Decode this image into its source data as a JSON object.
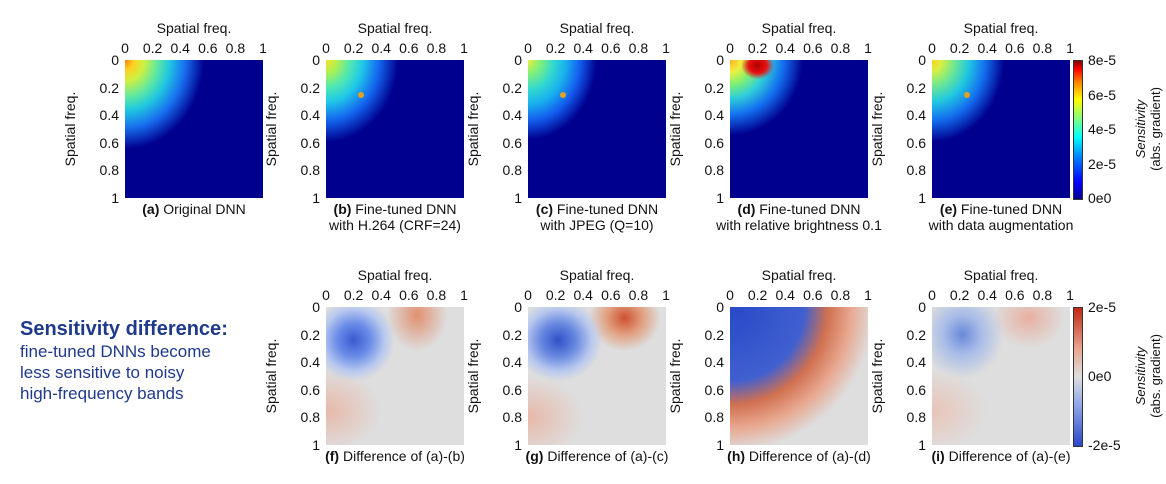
{
  "chart_data": [
    {
      "type": "heatmap",
      "id": "a",
      "xlabel": "Spatial freq.",
      "ylabel": "Spatial freq.",
      "xticks": [
        "0",
        "0.2",
        "0.4",
        "0.6",
        "0.8",
        "1"
      ],
      "yticks": [
        "0",
        "0.2",
        "0.4",
        "0.6",
        "0.8",
        "1"
      ],
      "caption_tag": "(a)",
      "caption": "Original DNN",
      "caption2": "",
      "metric": "sensitivity"
    },
    {
      "type": "heatmap",
      "id": "b",
      "xlabel": "Spatial freq.",
      "ylabel": "Spatial freq.",
      "xticks": [
        "0",
        "0.2",
        "0.4",
        "0.6",
        "0.8",
        "1"
      ],
      "yticks": [
        "0",
        "0.2",
        "0.4",
        "0.6",
        "0.8",
        "1"
      ],
      "caption_tag": "(b)",
      "caption": "Fine-tuned DNN",
      "caption2": "with H.264 (CRF=24)",
      "metric": "sensitivity"
    },
    {
      "type": "heatmap",
      "id": "c",
      "xlabel": "Spatial freq.",
      "ylabel": "Spatial freq.",
      "xticks": [
        "0",
        "0.2",
        "0.4",
        "0.6",
        "0.8",
        "1"
      ],
      "yticks": [
        "0",
        "0.2",
        "0.4",
        "0.6",
        "0.8",
        "1"
      ],
      "caption_tag": "(c)",
      "caption": "Fine-tuned DNN",
      "caption2": "with JPEG (Q=10)",
      "metric": "sensitivity"
    },
    {
      "type": "heatmap",
      "id": "d",
      "xlabel": "Spatial freq.",
      "ylabel": "Spatial freq.",
      "xticks": [
        "0",
        "0.2",
        "0.4",
        "0.6",
        "0.8",
        "1"
      ],
      "yticks": [
        "0",
        "0.2",
        "0.4",
        "0.6",
        "0.8",
        "1"
      ],
      "caption_tag": "(d)",
      "caption": "Fine-tuned DNN",
      "caption2": "with relative brightness 0.1",
      "metric": "sensitivity"
    },
    {
      "type": "heatmap",
      "id": "e",
      "xlabel": "Spatial freq.",
      "ylabel": "Spatial freq.",
      "xticks": [
        "0",
        "0.2",
        "0.4",
        "0.6",
        "0.8",
        "1"
      ],
      "yticks": [
        "0",
        "0.2",
        "0.4",
        "0.6",
        "0.8",
        "1"
      ],
      "caption_tag": "(e)",
      "caption": "Fine-tuned DNN",
      "caption2": "with data augmentation",
      "metric": "sensitivity"
    },
    {
      "type": "heatmap",
      "id": "f",
      "xlabel": "Spatial freq.",
      "ylabel": "Spatial freq.",
      "xticks": [
        "0",
        "0.2",
        "0.4",
        "0.6",
        "0.8",
        "1"
      ],
      "yticks": [
        "0",
        "0.2",
        "0.4",
        "0.6",
        "0.8",
        "1"
      ],
      "caption_tag": "(f)",
      "caption": "Difference of (a)-(b)",
      "caption2": "",
      "metric": "difference"
    },
    {
      "type": "heatmap",
      "id": "g",
      "xlabel": "Spatial freq.",
      "ylabel": "Spatial freq.",
      "xticks": [
        "0",
        "0.2",
        "0.4",
        "0.6",
        "0.8",
        "1"
      ],
      "yticks": [
        "0",
        "0.2",
        "0.4",
        "0.6",
        "0.8",
        "1"
      ],
      "caption_tag": "(g)",
      "caption": "Difference of (a)-(c)",
      "caption2": "",
      "metric": "difference"
    },
    {
      "type": "heatmap",
      "id": "h",
      "xlabel": "Spatial freq.",
      "ylabel": "Spatial freq.",
      "xticks": [
        "0",
        "0.2",
        "0.4",
        "0.6",
        "0.8",
        "1"
      ],
      "yticks": [
        "0",
        "0.2",
        "0.4",
        "0.6",
        "0.8",
        "1"
      ],
      "caption_tag": "(h)",
      "caption": "Difference of (a)-(d)",
      "caption2": "",
      "metric": "difference"
    },
    {
      "type": "heatmap",
      "id": "i",
      "xlabel": "Spatial freq.",
      "ylabel": "Spatial freq.",
      "xticks": [
        "0",
        "0.2",
        "0.4",
        "0.6",
        "0.8",
        "1"
      ],
      "yticks": [
        "0",
        "0.2",
        "0.4",
        "0.6",
        "0.8",
        "1"
      ],
      "caption_tag": "(i)",
      "caption": "Difference of (a)-(e)",
      "caption2": "",
      "metric": "difference"
    }
  ],
  "colorbars": {
    "sensitivity": {
      "ticks": [
        "8e-5",
        "6e-5",
        "4e-5",
        "2e-5",
        "0e0"
      ],
      "title": "Sensitivity",
      "subtitle": "(abs. gradient)",
      "range": [
        0,
        8e-05
      ]
    },
    "difference": {
      "ticks": [
        "2e-5",
        "0e0",
        "-2e-5"
      ],
      "title": "Sensitivity",
      "subtitle": "(abs. gradient)",
      "range": [
        -2e-05,
        2e-05
      ]
    }
  },
  "note": {
    "heading": "Sensitivity difference",
    "heading_suffix": ":",
    "body": [
      "fine-tuned DNNs become",
      "less sensitive to noisy",
      "high-frequency bands"
    ]
  },
  "colors": {
    "jet_low": "#00008f",
    "jet_mid": "#20d0d0",
    "jet_high": "#d00000",
    "diff_low": "#3a56c8",
    "diff_zero": "#dedede",
    "diff_high": "#c83020",
    "note_text": "#1f3a8a"
  }
}
